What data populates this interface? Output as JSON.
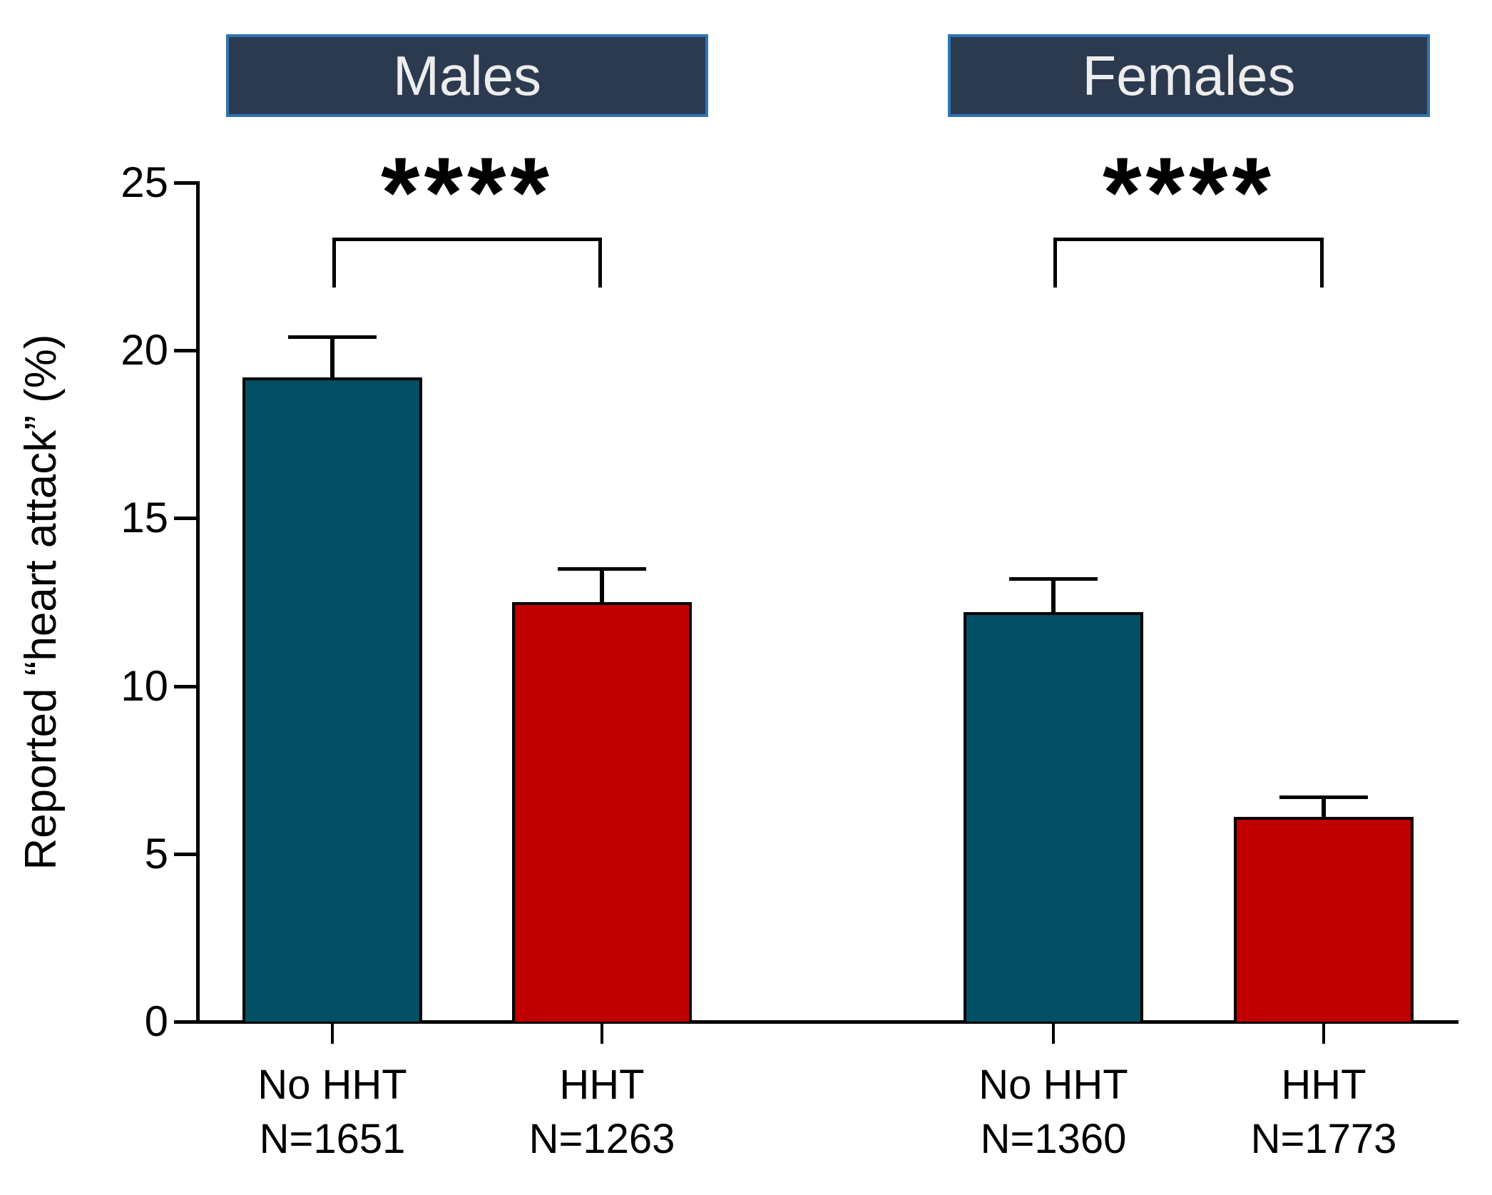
{
  "chart_data": {
    "type": "bar",
    "title": "",
    "ylabel": "Reported “heart attack” (%)",
    "xlabel": "",
    "ylim": [
      0,
      25
    ],
    "yticks": [
      0,
      5,
      10,
      15,
      20,
      25
    ],
    "grid": false,
    "legend": "none",
    "colors": {
      "teal": "#034F63",
      "red": "#C00000",
      "header_bg": "#2C3A50",
      "header_border": "#2E74B5",
      "header_text": "#EDEDED",
      "axis": "#000000"
    },
    "groups": [
      {
        "label": "Males",
        "sig": "****",
        "bars": [
          {
            "category": "No HHT",
            "n_label": "N=1651",
            "value": 19.2,
            "error": 1.2,
            "color": "teal"
          },
          {
            "category": "HHT",
            "n_label": "N=1263",
            "value": 12.5,
            "error": 1.0,
            "color": "red"
          }
        ]
      },
      {
        "label": "Females",
        "sig": "****",
        "bars": [
          {
            "category": "No HHT",
            "n_label": "N=1360",
            "value": 12.2,
            "error": 1.0,
            "color": "teal"
          },
          {
            "category": "HHT",
            "n_label": "N=1773",
            "value": 6.1,
            "error": 0.6,
            "color": "red"
          }
        ]
      }
    ]
  }
}
